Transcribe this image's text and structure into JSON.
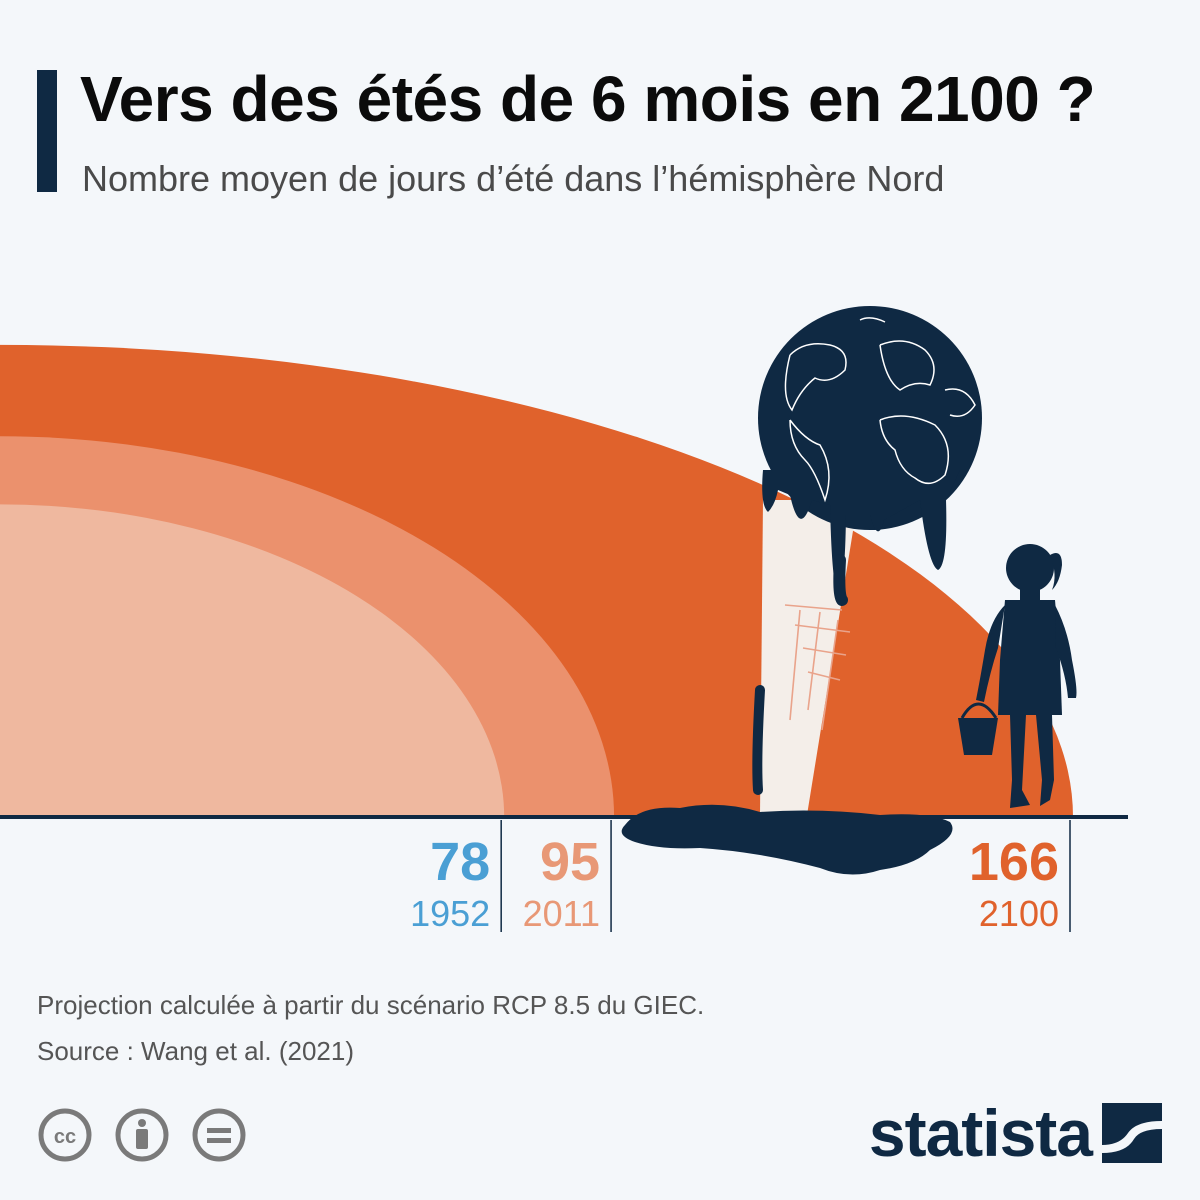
{
  "header": {
    "title": "Vers des étés de 6 mois en 2100 ?",
    "subtitle": "Nombre moyen de jours d’été dans l’hémisphère Nord"
  },
  "chart_data": {
    "type": "area",
    "title": "Vers des étés de 6 mois en 2100 ?",
    "subtitle": "Nombre moyen de jours d’été dans l’hémisphère Nord",
    "categories": [
      "1952",
      "2011",
      "2100"
    ],
    "values": [
      78,
      95,
      166
    ],
    "labels": [
      {
        "value": "78",
        "year": "1952",
        "color": "#4a9fd4"
      },
      {
        "value": "95",
        "year": "2011",
        "color": "#e89876"
      },
      {
        "value": "166",
        "year": "2100",
        "color": "#e0622c"
      }
    ],
    "colors": {
      "1952": "#efb89f",
      "2011": "#eb916d",
      "2100": "#e0622c"
    },
    "grid": false
  },
  "footer": {
    "note": "Projection calculée à partir du scénario RCP 8.5 du GIEC.",
    "source": "Source : Wang et al. (2021)",
    "brand": "statista"
  },
  "icons": [
    "creative-commons-icon",
    "attribution-icon",
    "no-derivatives-icon",
    "statista-logo-icon",
    "earth-icon",
    "ice-cream-cone-icon",
    "girl-with-bucket-icon"
  ]
}
